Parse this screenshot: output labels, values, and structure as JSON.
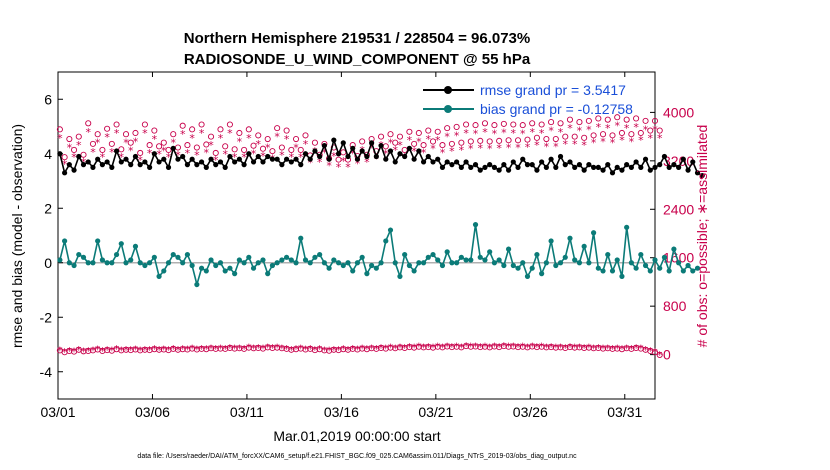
{
  "chart_data": {
    "type": "line",
    "title": "Northern Hemisphere 219531 / 228504 = 96.073%",
    "subtitle": "RADIOSONDE_U_WIND_COMPONENT @ 55 hPa",
    "xlabel": "Mar.01,2019 00:00:00 start",
    "ylabel": "rmse and bias (model - observation)",
    "ylabel_right": "# of obs: o=possible; ∗=assimilated",
    "footnote": "data file: /Users/raeder/DAI/ATM_forcXX/CAM6_setup/f.e21.FHIST_BGC.f09_025.CAM6assim.011/Diags_NTrS_2019-03/obs_diag_output.nc",
    "x_ticks": [
      "03/01",
      "03/06",
      "03/11",
      "03/16",
      "03/21",
      "03/26",
      "03/31"
    ],
    "x_tick_days": [
      0,
      5,
      10,
      15,
      20,
      25,
      30
    ],
    "xlim": [
      0,
      31.6
    ],
    "ylim": [
      -5,
      7
    ],
    "y_ticks": [
      "-4",
      "-2",
      "0",
      "2",
      "4",
      "6"
    ],
    "y_tick_values": [
      -4,
      -2,
      0,
      2,
      4,
      6
    ],
    "ylim_right": [
      -733,
      4667
    ],
    "y_ticks_right": [
      "0",
      "800",
      "1600",
      "2400",
      "3200",
      "4000"
    ],
    "y_tick_values_right": [
      0,
      800,
      1600,
      2400,
      3200,
      4000
    ],
    "time_step_days": 0.25,
    "series": [
      {
        "name": "rmse grand pr = 3.5417",
        "color": "#000000",
        "values": [
          4.0,
          3.3,
          3.6,
          3.4,
          3.9,
          3.6,
          3.7,
          3.5,
          3.8,
          3.6,
          3.7,
          3.5,
          4.1,
          3.7,
          3.8,
          3.6,
          3.9,
          3.6,
          3.7,
          3.5,
          4.0,
          3.7,
          3.8,
          3.5,
          4.2,
          3.8,
          3.9,
          3.6,
          3.8,
          3.6,
          3.7,
          3.5,
          3.8,
          3.6,
          3.7,
          3.5,
          3.9,
          3.7,
          3.8,
          3.6,
          4.0,
          3.7,
          3.9,
          3.7,
          3.9,
          3.8,
          3.8,
          3.6,
          3.8,
          3.7,
          3.8,
          3.6,
          4.0,
          3.8,
          4.1,
          3.9,
          4.3,
          3.8,
          4.5,
          4.0,
          4.4,
          3.9,
          4.2,
          3.8,
          4.1,
          3.9,
          4.4,
          3.9,
          4.3,
          3.8,
          4.1,
          3.7,
          4.0,
          3.9,
          4.2,
          3.8,
          4.1,
          3.7,
          3.9,
          3.7,
          3.8,
          3.5,
          3.7,
          3.6,
          3.7,
          3.5,
          3.7,
          3.5,
          3.6,
          3.4,
          3.5,
          3.6,
          3.5,
          3.4,
          3.6,
          3.4,
          3.7,
          3.5,
          3.8,
          3.6,
          3.6,
          3.4,
          3.7,
          3.5,
          3.8,
          3.5,
          3.9,
          3.6,
          3.7,
          3.5,
          3.6,
          3.4,
          3.6,
          3.5,
          3.5,
          3.4,
          3.6,
          3.3,
          3.5,
          3.4,
          3.6,
          3.5,
          3.7,
          3.5,
          3.8,
          3.4,
          3.5,
          3.6,
          3.9,
          3.5,
          3.6,
          3.5,
          3.8,
          3.4,
          3.7,
          3.3,
          3.2
        ],
        "series_unused_note": ""
      },
      {
        "name": "bias grand pr = -0.12758",
        "color": "#0b7b78",
        "values": [
          0.1,
          0.8,
          0.0,
          -0.1,
          0.3,
          0.2,
          0.0,
          0.0,
          0.8,
          0.1,
          0.0,
          0.0,
          0.3,
          0.7,
          0.0,
          0.1,
          0.6,
          0.0,
          -0.1,
          0.0,
          0.2,
          -0.5,
          -0.3,
          0.0,
          0.3,
          0.2,
          0.0,
          0.3,
          -0.1,
          -0.8,
          -0.2,
          -0.3,
          0.1,
          -0.1,
          0.0,
          -0.3,
          -0.2,
          -0.4,
          0.1,
          0.0,
          0.2,
          -0.2,
          0.0,
          0.1,
          -0.4,
          -0.1,
          0.0,
          0.1,
          0.2,
          0.1,
          0.0,
          0.9,
          0.1,
          0.0,
          0.2,
          0.3,
          0.0,
          -0.2,
          0.1,
          0.0,
          -0.1,
          0.0,
          -0.3,
          0.0,
          0.2,
          -0.4,
          -0.1,
          -0.2,
          0.0,
          0.8,
          1.2,
          0.0,
          -0.5,
          0.3,
          -0.1,
          -0.3,
          0.0,
          0.0,
          0.2,
          0.3,
          0.1,
          -0.1,
          0.4,
          0.0,
          0.0,
          0.2,
          0.1,
          0.1,
          1.4,
          0.2,
          0.1,
          0.4,
          0.0,
          0.1,
          -0.1,
          0.5,
          -0.1,
          -0.2,
          0.0,
          -0.5,
          -0.2,
          0.3,
          -0.4,
          0.0,
          0.8,
          -0.1,
          0.0,
          0.2,
          0.9,
          0.1,
          0.0,
          0.6,
          0.0,
          1.1,
          -0.2,
          -0.3,
          0.3,
          -0.3,
          0.1,
          -0.5,
          1.3,
          0.0,
          -0.2,
          0.3,
          -0.1,
          -0.3,
          0.1,
          -0.2,
          0.2,
          -0.3,
          0.5,
          0.0,
          -0.3,
          -0.1,
          -0.3,
          -0.2
        ]
      },
      {
        "name": "possible",
        "axis": "right",
        "marker": "circle",
        "color": "#c8004b",
        "values": [
          3720,
          3260,
          3560,
          3380,
          3600,
          3300,
          3820,
          3480,
          3640,
          3380,
          3730,
          3480,
          3800,
          3390,
          3640,
          3500,
          3660,
          3330,
          3800,
          3460,
          3700,
          3440,
          3500,
          3380,
          3640,
          3420,
          3780,
          3460,
          3720,
          3420,
          3800,
          3470,
          3600,
          3330,
          3720,
          3440,
          3800,
          3390,
          3660,
          3380,
          3720,
          3450,
          3620,
          3400,
          3560,
          3360,
          3740,
          3420,
          3700,
          3380,
          3560,
          3380,
          3620,
          3290,
          3500,
          3300,
          3480,
          3240,
          3420,
          3220,
          3340,
          3220,
          3460,
          3280,
          3520,
          3300,
          3560,
          3360,
          3600,
          3440,
          3640,
          3500,
          3600,
          3380,
          3680,
          3480,
          3660,
          3460,
          3700,
          3520,
          3680,
          3460,
          3740,
          3480,
          3760,
          3500,
          3800,
          3520,
          3790,
          3530,
          3820,
          3520,
          3790,
          3530,
          3810,
          3540,
          3800,
          3540,
          3790,
          3550,
          3820,
          3580,
          3800,
          3560,
          3840,
          3560,
          3820,
          3600,
          3880,
          3600,
          3840,
          3580,
          3860,
          3620,
          3900,
          3640,
          3880,
          3620,
          3920,
          3660,
          3880,
          3640,
          3900,
          3660,
          3860,
          3700,
          3860,
          3700
        ],
        "series_unused_note": ""
      },
      {
        "name": "assimilated",
        "axis": "right",
        "marker": "star",
        "color": "#c8004b",
        "values": [
          3580,
          3150,
          3420,
          3260,
          3460,
          3180,
          3680,
          3350,
          3500,
          3260,
          3590,
          3350,
          3660,
          3260,
          3500,
          3370,
          3520,
          3210,
          3660,
          3330,
          3560,
          3310,
          3370,
          3260,
          3500,
          3300,
          3640,
          3330,
          3580,
          3300,
          3660,
          3340,
          3460,
          3210,
          3580,
          3310,
          3660,
          3260,
          3520,
          3260,
          3580,
          3320,
          3480,
          3280,
          3420,
          3240,
          3600,
          3300,
          3560,
          3260,
          3420,
          3260,
          3480,
          3170,
          3360,
          3180,
          3340,
          3120,
          3280,
          3100,
          3200,
          3100,
          3320,
          3160,
          3380,
          3180,
          3420,
          3240,
          3460,
          3320,
          3500,
          3380,
          3460,
          3260,
          3540,
          3360,
          3520,
          3340,
          3560,
          3400,
          3540,
          3340,
          3600,
          3360,
          3620,
          3380,
          3660,
          3400,
          3650,
          3410,
          3680,
          3400,
          3650,
          3410,
          3670,
          3420,
          3660,
          3420,
          3650,
          3430,
          3680,
          3460,
          3660,
          3440,
          3700,
          3440,
          3680,
          3480,
          3740,
          3480,
          3700,
          3460,
          3720,
          3500,
          3760,
          3520,
          3740,
          3500,
          3780,
          3540,
          3740,
          3520,
          3760,
          3540,
          3720,
          3580,
          3720,
          3580
        ]
      },
      {
        "name": "possible_low",
        "axis": "right",
        "marker": "circle",
        "color": "#c8004b",
        "values": [
          70,
          40,
          60,
          50,
          80,
          55,
          60,
          70,
          85,
          60,
          75,
          65,
          90,
          70,
          80,
          75,
          85,
          70,
          80,
          75,
          90,
          80,
          85,
          75,
          95,
          80,
          90,
          85,
          100,
          85,
          95,
          90,
          105,
          95,
          100,
          95,
          110,
          100,
          105,
          95,
          115,
          105,
          110,
          100,
          120,
          110,
          115,
          105,
          95,
          80,
          90,
          100,
          85,
          95,
          75,
          90,
          70,
          65,
          80,
          75,
          90,
          80,
          95,
          85,
          100,
          90,
          105,
          95,
          110,
          100,
          115,
          105,
          120,
          110,
          125,
          115,
          130,
          120,
          125,
          115,
          130,
          120,
          135,
          125,
          130,
          120,
          140,
          130,
          135,
          125,
          130,
          120,
          135,
          125,
          140,
          130,
          135,
          125,
          130,
          120,
          135,
          125,
          130,
          120,
          125,
          115,
          120,
          110,
          125,
          115,
          120,
          110,
          115,
          105,
          110,
          100,
          105,
          95,
          100,
          90,
          105,
          95,
          110,
          100,
          80,
          60,
          40,
          -5
        ]
      },
      {
        "name": "assimilated_low",
        "axis": "right",
        "marker": "star",
        "color": "#c8004b",
        "values": [
          70,
          40,
          60,
          50,
          80,
          55,
          60,
          70,
          85,
          60,
          75,
          65,
          90,
          70,
          80,
          75,
          85,
          70,
          80,
          75,
          90,
          80,
          85,
          75,
          95,
          80,
          90,
          85,
          100,
          85,
          95,
          90,
          105,
          95,
          100,
          95,
          110,
          100,
          105,
          95,
          115,
          105,
          110,
          100,
          120,
          110,
          115,
          105,
          95,
          80,
          90,
          100,
          85,
          95,
          75,
          90,
          70,
          65,
          80,
          75,
          90,
          80,
          95,
          85,
          100,
          90,
          105,
          95,
          110,
          100,
          115,
          105,
          120,
          110,
          125,
          115,
          130,
          120,
          125,
          115,
          130,
          120,
          135,
          125,
          130,
          120,
          140,
          130,
          135,
          125,
          130,
          120,
          135,
          125,
          140,
          130,
          135,
          125,
          130,
          120,
          135,
          125,
          130,
          120,
          125,
          115,
          120,
          110,
          125,
          115,
          120,
          110,
          115,
          105,
          110,
          100,
          105,
          95,
          100,
          90,
          105,
          95,
          110,
          100,
          80,
          60,
          40,
          -5
        ]
      }
    ]
  }
}
